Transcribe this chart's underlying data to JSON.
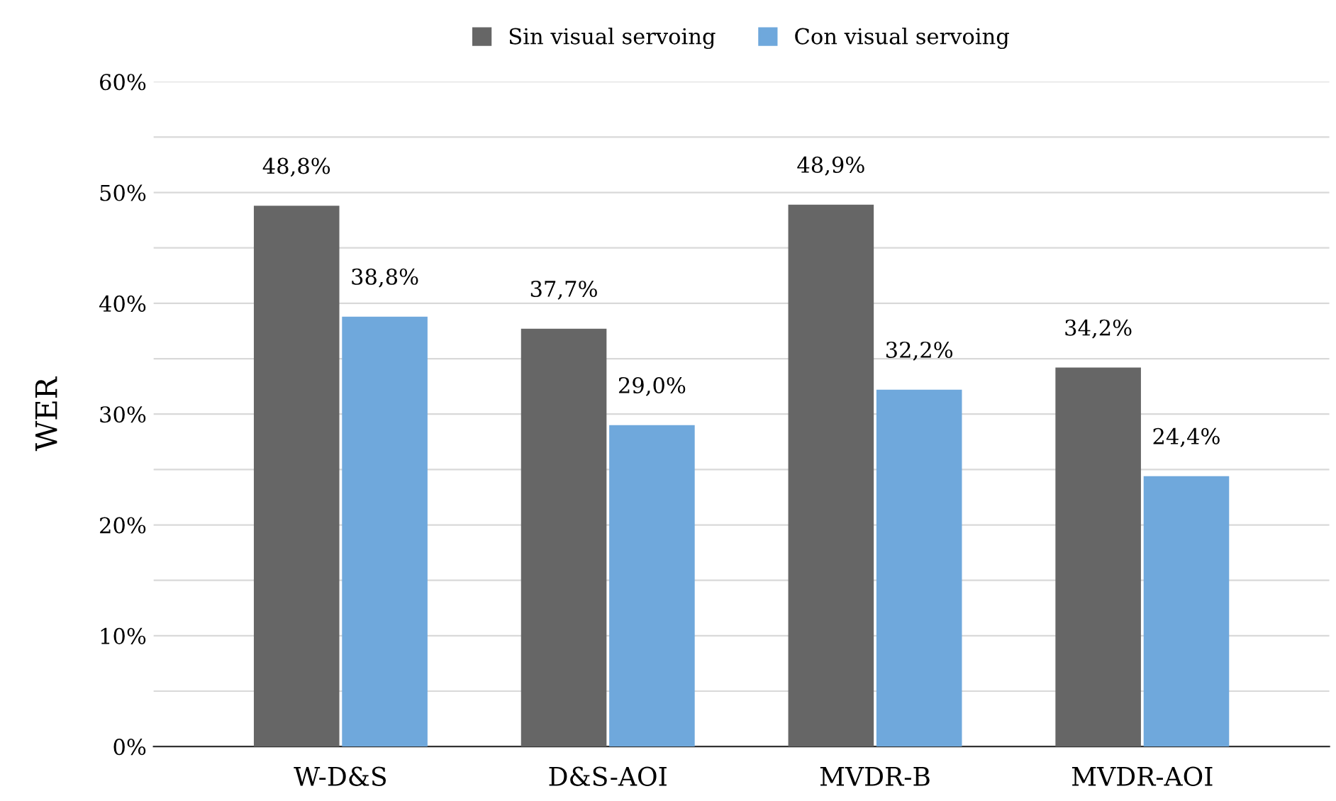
{
  "chart_data": {
    "type": "bar",
    "ylabel": "WER",
    "categories": [
      "W-D&S",
      "D&S-AOI",
      "MVDR-B",
      "MVDR-AOI"
    ],
    "series": [
      {
        "name": "Sin visual servoing",
        "color": "#666666",
        "values": [
          48.8,
          37.7,
          48.9,
          34.2
        ],
        "value_labels": [
          "48,8%",
          "37,7%",
          "48,9%",
          "34,2%"
        ]
      },
      {
        "name": "Con visual servoing",
        "color": "#6fa8dc",
        "values": [
          38.8,
          29.0,
          32.2,
          24.4
        ],
        "value_labels": [
          "38,8%",
          "29,0%",
          "32,2%",
          "24,4%"
        ]
      }
    ],
    "ylim": [
      0,
      60
    ],
    "yticks": [
      {
        "value": 0,
        "label": "0%"
      },
      {
        "value": 5,
        "label": null
      },
      {
        "value": 10,
        "label": "10%"
      },
      {
        "value": 15,
        "label": null
      },
      {
        "value": 20,
        "label": "20%"
      },
      {
        "value": 25,
        "label": null
      },
      {
        "value": 30,
        "label": "30%"
      },
      {
        "value": 35,
        "label": null
      },
      {
        "value": 40,
        "label": "40%"
      },
      {
        "value": 45,
        "label": null
      },
      {
        "value": 50,
        "label": "50%"
      },
      {
        "value": 55,
        "label": null
      },
      {
        "value": 60,
        "label": "60%"
      }
    ],
    "grid": "y",
    "legend": "top"
  }
}
